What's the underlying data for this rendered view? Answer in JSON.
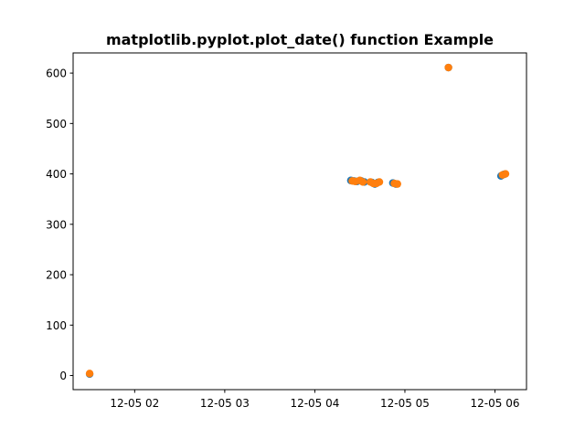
{
  "chart_data": {
    "type": "scatter",
    "title": "matplotlib.pyplot.plot_date() function Example",
    "xlabel": "",
    "ylabel": "",
    "x_axis_type": "date",
    "x_range": [
      "2021-12-05 01:19",
      "2021-12-05 06:21"
    ],
    "ylim": [
      -28,
      640
    ],
    "x_ticks": [
      {
        "value": "2021-12-05 02:00",
        "label": "12-05 02"
      },
      {
        "value": "2021-12-05 03:00",
        "label": "12-05 03"
      },
      {
        "value": "2021-12-05 04:00",
        "label": "12-05 04"
      },
      {
        "value": "2021-12-05 05:00",
        "label": "12-05 05"
      },
      {
        "value": "2021-12-05 06:00",
        "label": "12-05 06"
      }
    ],
    "y_ticks": [
      0,
      100,
      200,
      300,
      400,
      500,
      600
    ],
    "grid": false,
    "legend": "none",
    "series": [
      {
        "color": "#1f77b4",
        "points": [
          {
            "x": "2021-12-05 01:30",
            "y": 3
          },
          {
            "x": "2021-12-05 04:24",
            "y": 387
          },
          {
            "x": "2021-12-05 04:26",
            "y": 386
          },
          {
            "x": "2021-12-05 04:28",
            "y": 385
          },
          {
            "x": "2021-12-05 04:31",
            "y": 386
          },
          {
            "x": "2021-12-05 04:33",
            "y": 384
          },
          {
            "x": "2021-12-05 04:38",
            "y": 383
          },
          {
            "x": "2021-12-05 04:40",
            "y": 380
          },
          {
            "x": "2021-12-05 04:42",
            "y": 383
          },
          {
            "x": "2021-12-05 04:52",
            "y": 382
          },
          {
            "x": "2021-12-05 04:54",
            "y": 380
          },
          {
            "x": "2021-12-05 05:29",
            "y": 611
          },
          {
            "x": "2021-12-05 06:04",
            "y": 396
          },
          {
            "x": "2021-12-05 06:06",
            "y": 399
          }
        ]
      },
      {
        "color": "#ff7f0e",
        "points": [
          {
            "x": "2021-12-05 01:30",
            "y": 4
          },
          {
            "x": "2021-12-05 04:25",
            "y": 386
          },
          {
            "x": "2021-12-05 04:27",
            "y": 385
          },
          {
            "x": "2021-12-05 04:30",
            "y": 387
          },
          {
            "x": "2021-12-05 04:32",
            "y": 384
          },
          {
            "x": "2021-12-05 04:37",
            "y": 384
          },
          {
            "x": "2021-12-05 04:39",
            "y": 381
          },
          {
            "x": "2021-12-05 04:41",
            "y": 381
          },
          {
            "x": "2021-12-05 04:43",
            "y": 384
          },
          {
            "x": "2021-12-05 04:53",
            "y": 381
          },
          {
            "x": "2021-12-05 04:55",
            "y": 380
          },
          {
            "x": "2021-12-05 05:29",
            "y": 611
          },
          {
            "x": "2021-12-05 06:05",
            "y": 398
          },
          {
            "x": "2021-12-05 06:07",
            "y": 400
          }
        ]
      }
    ]
  }
}
